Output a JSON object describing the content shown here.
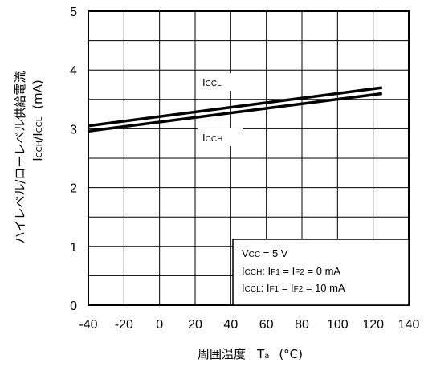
{
  "chart_data": {
    "type": "line",
    "xlabel_main": "周囲温度",
    "xlabel_symbol": "T",
    "xlabel_sub": "a",
    "xlabel_unit": "(°C)",
    "ylabel_line1": "ハイレベル/ローレベル供給電流",
    "ylabel_line2_a": "I",
    "ylabel_line2_a_sub": "CCH",
    "ylabel_line2_sep": "/I",
    "ylabel_line2_b_sub": "CCL",
    "ylabel_line2_unit": "(mA)",
    "xlim": [
      -40,
      140
    ],
    "ylim": [
      0,
      5
    ],
    "x_ticks": [
      "-40",
      "-20",
      "0",
      "20",
      "40",
      "60",
      "80",
      "100",
      "120",
      "140"
    ],
    "y_ticks": [
      "0",
      "1",
      "2",
      "3",
      "4",
      "5"
    ],
    "x_tick_values": [
      -40,
      -20,
      0,
      20,
      40,
      60,
      80,
      100,
      120,
      140
    ],
    "y_tick_values": [
      0,
      1,
      2,
      3,
      4,
      5
    ],
    "grid": true,
    "series": [
      {
        "name_main": "I",
        "name_sub": "CCL",
        "x": [
          -40,
          125
        ],
        "y": [
          3.05,
          3.7
        ]
      },
      {
        "name_main": "I",
        "name_sub": "CCH",
        "x": [
          -40,
          125
        ],
        "y": [
          2.96,
          3.6
        ]
      }
    ],
    "legend": {
      "line1_main": "V",
      "line1_sub": "CC",
      "line1_rest": " = 5 V",
      "line2_main": "I",
      "line2_sub": "CCH",
      "line2_rest_a": ": I",
      "line2_sub2": "F1",
      "line2_rest_b": " = I",
      "line2_sub3": "F2",
      "line2_rest_c": " = 0 mA",
      "line3_main": "I",
      "line3_sub": "CCL",
      "line3_rest_a": ": I",
      "line3_sub2": "F1",
      "line3_rest_b": " = I",
      "line3_sub3": "F2",
      "line3_rest_c": " = 10 mA"
    }
  }
}
